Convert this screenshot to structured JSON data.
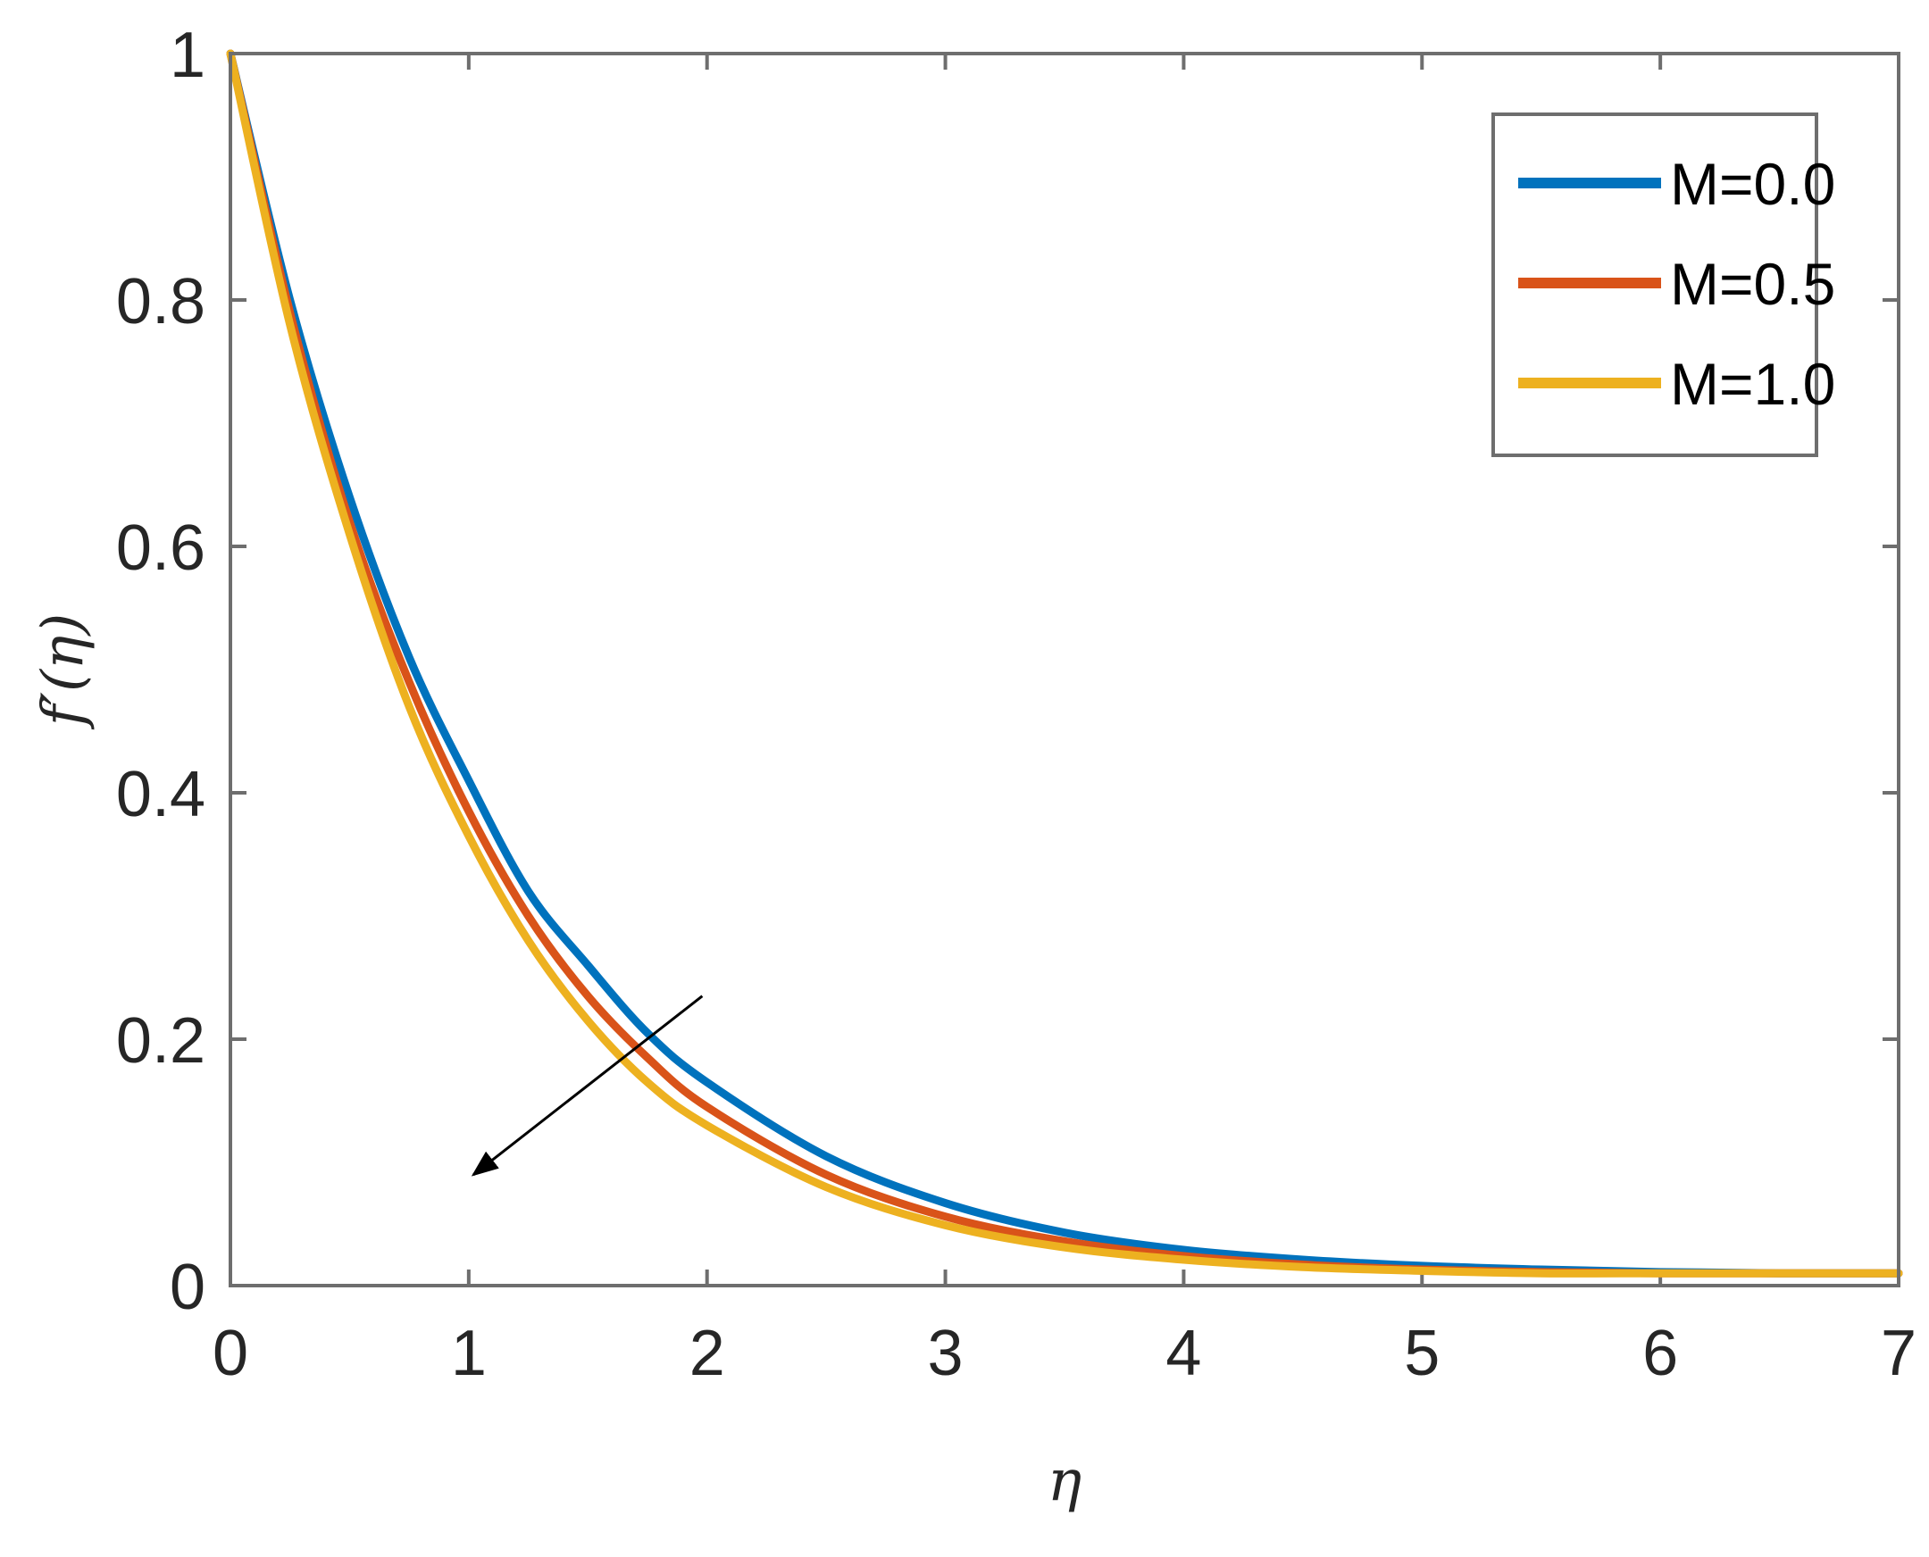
{
  "chart_data": {
    "type": "line",
    "title": "",
    "xlabel": "η",
    "ylabel": "f′(η)",
    "xlim": [
      0,
      7
    ],
    "ylim": [
      0,
      1
    ],
    "xticks": [
      0,
      1,
      2,
      3,
      4,
      5,
      6,
      7
    ],
    "yticks": [
      0,
      0.2,
      0.4,
      0.6,
      0.8,
      1
    ],
    "xtick_labels": [
      "0",
      "1",
      "2",
      "3",
      "4",
      "5",
      "6",
      "7"
    ],
    "ytick_labels": [
      "0",
      "0.2",
      "0.4",
      "0.6",
      "0.8",
      "1"
    ],
    "grid": false,
    "legend_position": "top-right",
    "x": [
      0,
      0.25,
      0.5,
      0.75,
      1.0,
      1.25,
      1.5,
      1.75,
      2.0,
      2.5,
      3.0,
      3.5,
      4.0,
      4.5,
      5.0,
      5.5,
      6.0,
      6.5,
      7.0
    ],
    "series": [
      {
        "name": "M=0.0",
        "color": "#0072BD",
        "values": [
          1.0,
          0.8,
          0.64,
          0.51,
          0.41,
          0.32,
          0.26,
          0.205,
          0.165,
          0.105,
          0.067,
          0.043,
          0.029,
          0.021,
          0.016,
          0.013,
          0.011,
          0.01,
          0.01
        ]
      },
      {
        "name": "M=0.5",
        "color": "#D95319",
        "values": [
          1.0,
          0.79,
          0.62,
          0.49,
          0.385,
          0.3,
          0.235,
          0.185,
          0.145,
          0.09,
          0.056,
          0.036,
          0.024,
          0.017,
          0.013,
          0.011,
          0.01,
          0.01,
          0.01
        ]
      },
      {
        "name": "M=1.0",
        "color": "#EDB120",
        "values": [
          1.0,
          0.78,
          0.61,
          0.47,
          0.365,
          0.28,
          0.215,
          0.165,
          0.13,
          0.08,
          0.049,
          0.031,
          0.021,
          0.015,
          0.012,
          0.01,
          0.01,
          0.01,
          0.01
        ]
      }
    ],
    "annotations": [
      {
        "type": "arrow",
        "from": [
          1.98,
          0.235
        ],
        "to": [
          1.02,
          0.09
        ],
        "color": "#000000"
      }
    ]
  }
}
